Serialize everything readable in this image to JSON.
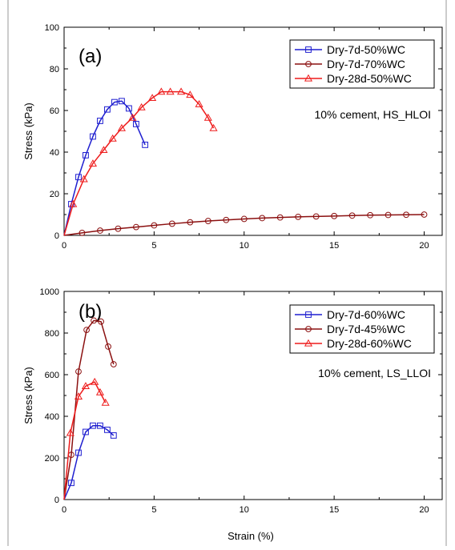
{
  "xlabel": "Strain (%)",
  "chart_data": [
    {
      "type": "line",
      "panel_label": "(a)",
      "annotation": "10% cement, HS_HLOI",
      "ylabel": "Stress (kPa)",
      "xlabel": "",
      "xlim": [
        0,
        21
      ],
      "ylim": [
        0,
        100
      ],
      "xticks": [
        "0",
        "5",
        "10",
        "15",
        "20"
      ],
      "yticks": [
        "0",
        "20",
        "40",
        "60",
        "80",
        "100"
      ],
      "grid": false,
      "legend_position": "top-right",
      "series": [
        {
          "name": "Dry-7d-50%WC",
          "color": "#1f1fd0",
          "marker": "square",
          "x": [
            0,
            0.4,
            0.8,
            1.2,
            1.6,
            2.0,
            2.4,
            2.8,
            3.2,
            3.6,
            4.0,
            4.5
          ],
          "y": [
            0,
            15,
            28,
            38.5,
            47.5,
            55,
            60.5,
            64,
            64.5,
            61,
            53.5,
            43.5
          ]
        },
        {
          "name": "Dry-7d-70%WC",
          "color": "#8b1010",
          "marker": "circle",
          "x": [
            0,
            1,
            2,
            3,
            4,
            5,
            6,
            7,
            8,
            9,
            10,
            11,
            12,
            13,
            14,
            15,
            16,
            17,
            18,
            19,
            20
          ],
          "y": [
            0,
            1.2,
            2.3,
            3.2,
            4.0,
            4.8,
            5.6,
            6.3,
            6.9,
            7.4,
            7.9,
            8.3,
            8.6,
            8.9,
            9.1,
            9.3,
            9.5,
            9.7,
            9.8,
            9.9,
            10.0
          ]
        },
        {
          "name": "Dry-28d-50%WC",
          "color": "#ee1c1c",
          "marker": "triangle",
          "x": [
            0,
            0.5,
            1.1,
            1.6,
            2.2,
            2.7,
            3.2,
            3.8,
            4.3,
            4.9,
            5.4,
            5.9,
            6.5,
            7.0,
            7.5,
            8.0,
            8.3
          ],
          "y": [
            0,
            15,
            27,
            34.5,
            41,
            46.5,
            51.5,
            56.5,
            61.5,
            66,
            69,
            69,
            69,
            67.5,
            63,
            56.5,
            51.5
          ]
        }
      ]
    },
    {
      "type": "line",
      "panel_label": "(b)",
      "annotation": "10% cement, LS_LLOI",
      "ylabel": "Stress (kPa)",
      "xlabel": "Strain (%)",
      "xlim": [
        0,
        21
      ],
      "ylim": [
        0,
        1000
      ],
      "xticks": [
        "0",
        "5",
        "10",
        "15",
        "20"
      ],
      "yticks": [
        "0",
        "200",
        "400",
        "600",
        "800",
        "1000"
      ],
      "grid": false,
      "legend_position": "top-right",
      "series": [
        {
          "name": "Dry-7d-60%WC",
          "color": "#1f1fd0",
          "marker": "square",
          "x": [
            0,
            0.4,
            0.8,
            1.2,
            1.6,
            2.0,
            2.4,
            2.75
          ],
          "y": [
            0,
            80,
            225,
            325,
            355,
            355,
            335,
            308
          ]
        },
        {
          "name": "Dry-7d-45%WC",
          "color": "#8b1010",
          "marker": "circle",
          "x": [
            0,
            0.4,
            0.8,
            1.25,
            1.65,
            2.05,
            2.45,
            2.75
          ],
          "y": [
            0,
            215,
            615,
            815,
            860,
            855,
            735,
            650
          ]
        },
        {
          "name": "Dry-28d-60%WC",
          "color": "#ee1c1c",
          "marker": "triangle",
          "x": [
            0,
            0.35,
            0.8,
            1.2,
            1.7,
            2.0,
            2.3
          ],
          "y": [
            0,
            320,
            495,
            545,
            565,
            515,
            465
          ]
        }
      ]
    }
  ]
}
